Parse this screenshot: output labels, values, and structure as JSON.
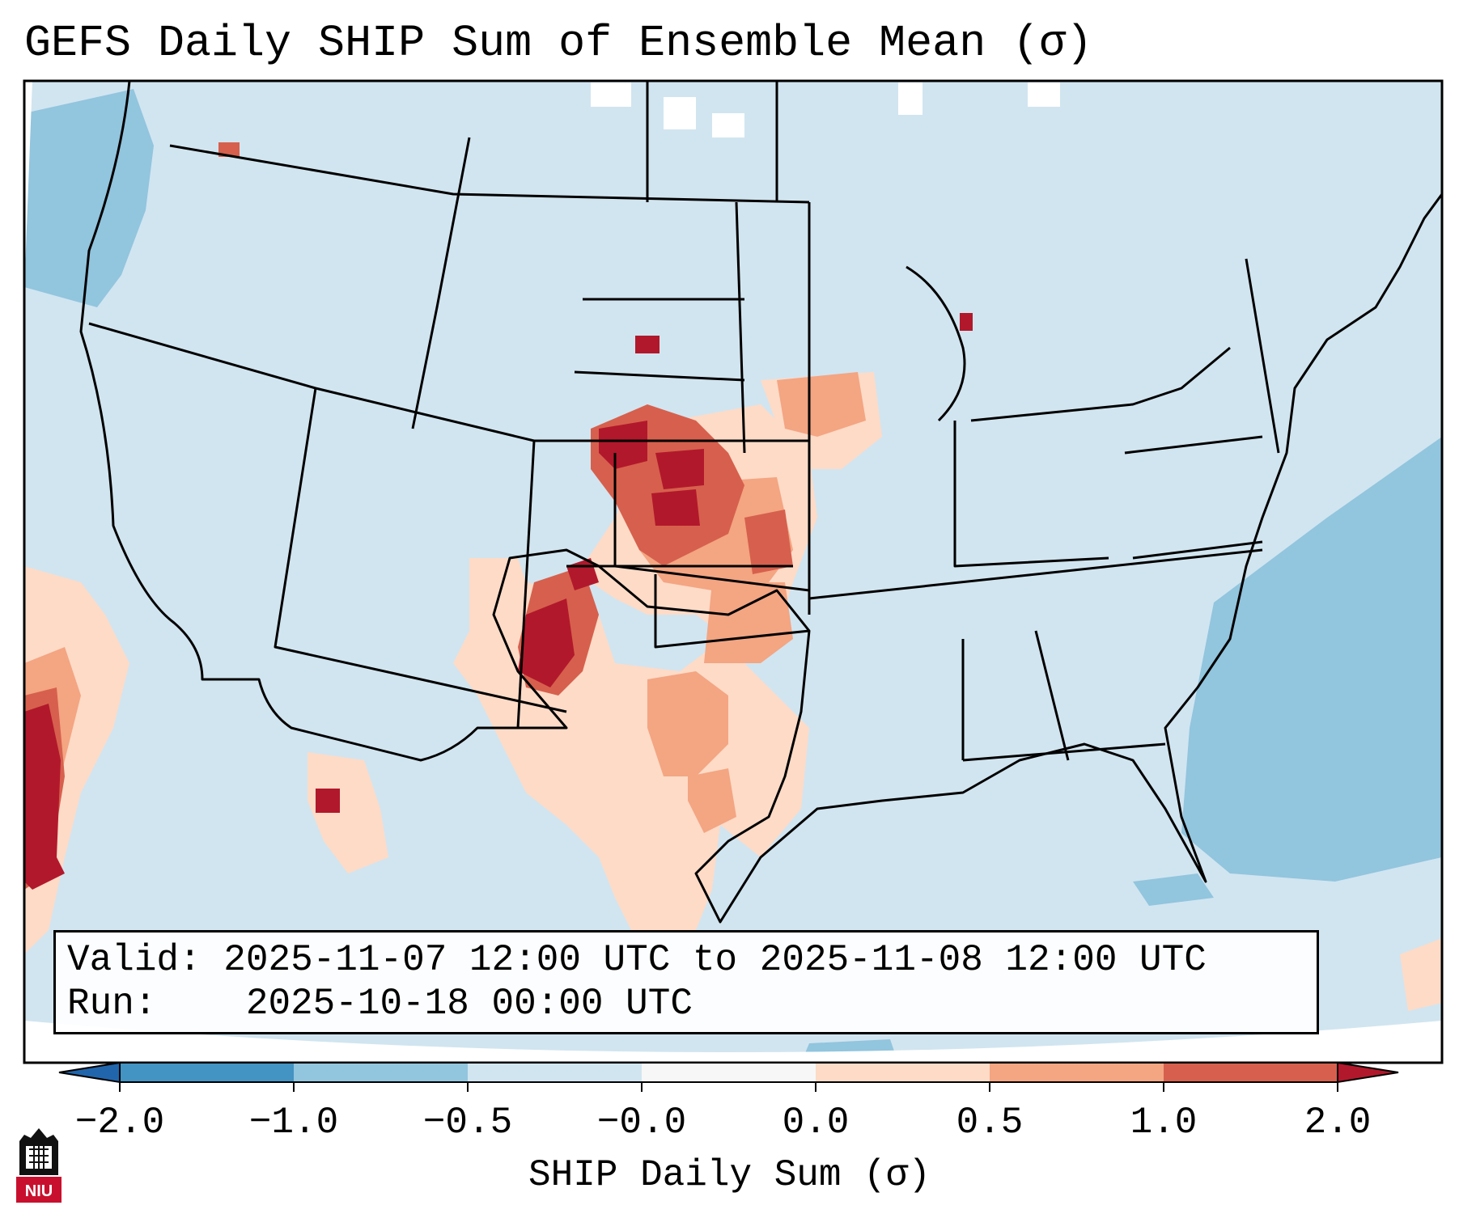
{
  "title": "GEFS Daily SHIP Sum of Ensemble Mean (σ)",
  "info": {
    "valid_label": "Valid:",
    "valid_value": "2025-11-07 12:00 UTC to 2025-11-08 12:00 UTC",
    "run_label": "Run:",
    "run_value": "2025-10-18 00:00 UTC"
  },
  "colorbar": {
    "label": "SHIP Daily Sum (σ)",
    "ticks": [
      "−2.0",
      "−1.0",
      "−0.5",
      "−0.0",
      "0.0",
      "0.5",
      "1.0",
      "2.0"
    ],
    "bins": [
      {
        "range": "<-2.0",
        "color": "#2166ac"
      },
      {
        "range": "-2.0 to -1.0",
        "color": "#4393c3"
      },
      {
        "range": "-1.0 to -0.5",
        "color": "#92c5de"
      },
      {
        "range": "-0.5 to -0.0",
        "color": "#d1e5f0"
      },
      {
        "range": "-0.0 to 0.0",
        "color": "#f7f7f7"
      },
      {
        "range": "0.0 to 0.5",
        "color": "#fddbc7"
      },
      {
        "range": "0.5 to 1.0",
        "color": "#f4a582"
      },
      {
        "range": "1.0 to 2.0",
        "color": "#d6604d"
      },
      {
        "range": ">2.0",
        "color": "#b2182b"
      }
    ]
  },
  "map": {
    "background_value_color": "#d1e5f0",
    "projection_edge": "white outside projected domain",
    "anomaly_regions": [
      {
        "area": "Central Plains (Nebraska-Kansas)",
        "max_category": ">2.0"
      },
      {
        "area": "Eastern New Mexico / West Texas Panhandle",
        "max_category": ">2.0"
      },
      {
        "area": "Oklahoma / Texas",
        "max_category": "0.5 to 1.0"
      },
      {
        "area": "Northern Michigan",
        "max_category": ">2.0"
      },
      {
        "area": "Eastern Pacific off Baja California",
        "max_category": ">2.0"
      },
      {
        "area": "Western Atlantic",
        "max_category": "-1.0 to -0.5"
      },
      {
        "area": "Northeastern Pacific",
        "max_category": "-1.0 to -0.5"
      }
    ]
  },
  "logo_text": "NIU"
}
